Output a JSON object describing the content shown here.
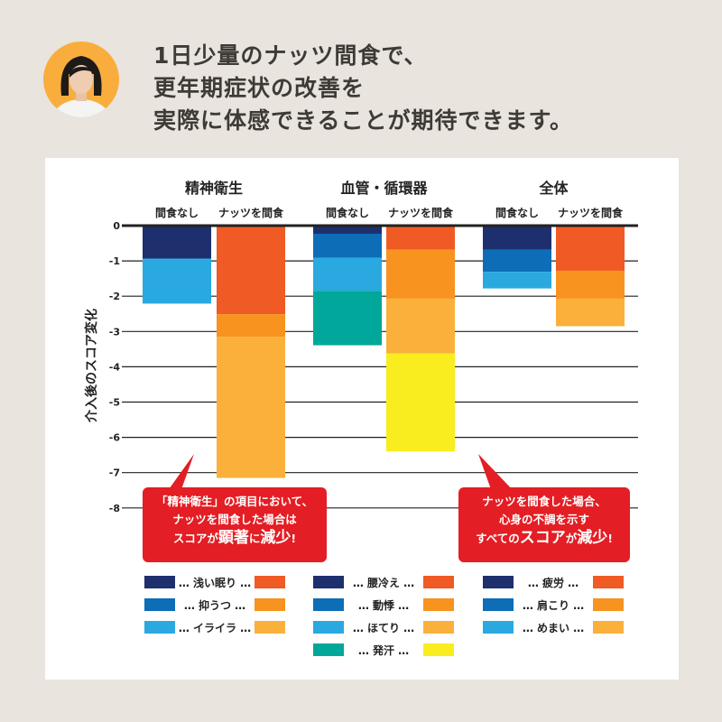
{
  "headline": [
    "1日少量のナッツ間食で、",
    "更年期症状の改善を",
    "実際に体感できることが期待できます。"
  ],
  "chart_data": {
    "type": "bar",
    "stacked": true,
    "ylabel": "介入後のスコア変化",
    "ylim": [
      -8,
      0
    ],
    "yticks": [
      "0",
      "-1",
      "-2",
      "-3",
      "-4",
      "-5",
      "-6",
      "-7",
      "-8"
    ],
    "grid": true,
    "groups": [
      {
        "title": "精神衛生",
        "bars": [
          {
            "label": "間食なし",
            "segments": [
              {
                "name": "浅い眠り",
                "value": -0.93,
                "color": "#1e2f6e"
              },
              {
                "name": "抑うつ",
                "value": -0.02,
                "color": "#0d6db6"
              },
              {
                "name": "イライラ",
                "value": -1.26,
                "color": "#29a9e0"
              }
            ]
          },
          {
            "label": "ナッツを間食",
            "segments": [
              {
                "name": "浅い眠り",
                "value": -2.51,
                "color": "#f05a24"
              },
              {
                "name": "抑うつ",
                "value": -0.64,
                "color": "#f7931e"
              },
              {
                "name": "イライラ",
                "value": -4.0,
                "color": "#fbb03b"
              }
            ]
          }
        ]
      },
      {
        "title": "血管・循環器",
        "bars": [
          {
            "label": "間食なし",
            "segments": [
              {
                "name": "腰冷え",
                "value": -0.23,
                "color": "#1e2f6e"
              },
              {
                "name": "動悸",
                "value": -0.68,
                "color": "#0d6db6"
              },
              {
                "name": "ほてり",
                "value": -0.94,
                "color": "#29a9e0"
              },
              {
                "name": "発汗",
                "value": -1.54,
                "color": "#00a79a"
              }
            ]
          },
          {
            "label": "ナッツを間食",
            "segments": [
              {
                "name": "腰冷え",
                "value": -0.68,
                "color": "#f05a24"
              },
              {
                "name": "動悸",
                "value": -1.39,
                "color": "#f7931e"
              },
              {
                "name": "ほてり",
                "value": -1.55,
                "color": "#fbb03b"
              },
              {
                "name": "発汗",
                "value": -2.78,
                "color": "#f9ec1f"
              }
            ]
          }
        ]
      },
      {
        "title": "全体",
        "bars": [
          {
            "label": "間食なし",
            "segments": [
              {
                "name": "疲労",
                "value": -0.68,
                "color": "#1e2f6e"
              },
              {
                "name": "肩こり",
                "value": -0.63,
                "color": "#0d6db6"
              },
              {
                "name": "めまい",
                "value": -0.47,
                "color": "#29a9e0"
              }
            ]
          },
          {
            "label": "ナッツを間食",
            "segments": [
              {
                "name": "疲労",
                "value": -1.28,
                "color": "#f05a24"
              },
              {
                "name": "肩こり",
                "value": -0.79,
                "color": "#f7931e"
              },
              {
                "name": "めまい",
                "value": -0.78,
                "color": "#fbb03b"
              }
            ]
          }
        ]
      }
    ],
    "legend_placement": "bottom",
    "annotations": [
      {
        "lines": [
          "「精神衛生」の項目において、",
          "ナッツを間食した場合は"
        ],
        "emph": [
          "スコアが",
          "顕著",
          "に",
          "減少",
          "!"
        ]
      },
      {
        "lines": [
          "ナッツを間食した場合、",
          "心身の不調を示す"
        ],
        "emph": [
          "すべての",
          "スコア",
          "が",
          "減少",
          "!"
        ]
      }
    ]
  }
}
